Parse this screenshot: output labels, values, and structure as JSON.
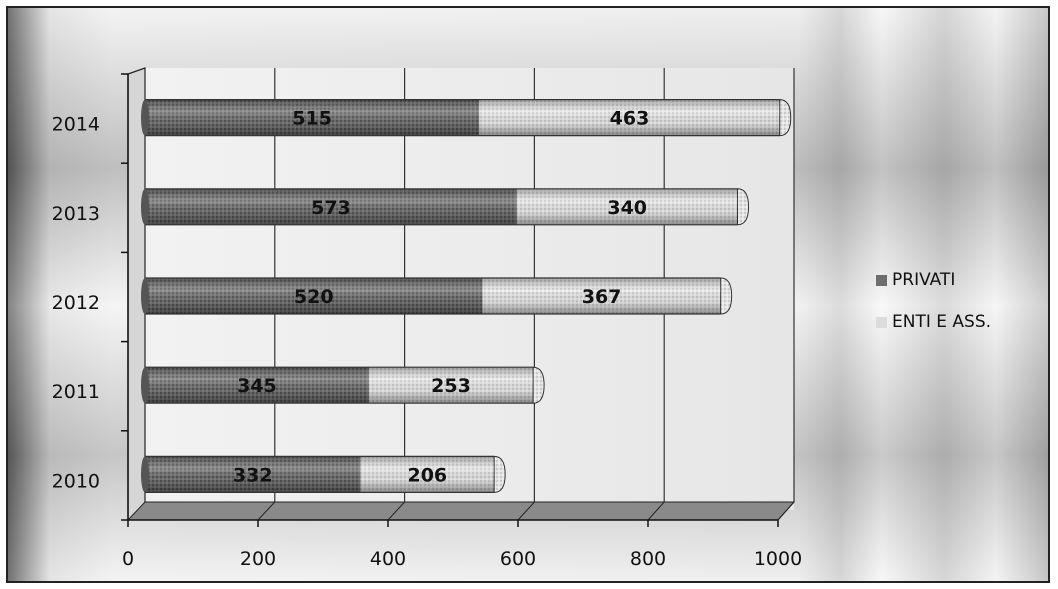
{
  "chart_data": {
    "type": "bar",
    "orientation": "horizontal",
    "stacked": true,
    "categories": [
      "2014",
      "2013",
      "2012",
      "2011",
      "2010"
    ],
    "series": [
      {
        "name": "PRIVATI",
        "values": [
          515,
          573,
          520,
          345,
          332
        ],
        "color": "#6e6e6e"
      },
      {
        "name": "ENTI E ASS.",
        "values": [
          463,
          340,
          367,
          253,
          206
        ],
        "color": "#dcdcdc"
      }
    ],
    "x_ticks": [
      "0",
      "200",
      "400",
      "600",
      "800",
      "1000"
    ],
    "xlim": [
      0,
      1000
    ],
    "grid": true,
    "legend_position": "right"
  }
}
